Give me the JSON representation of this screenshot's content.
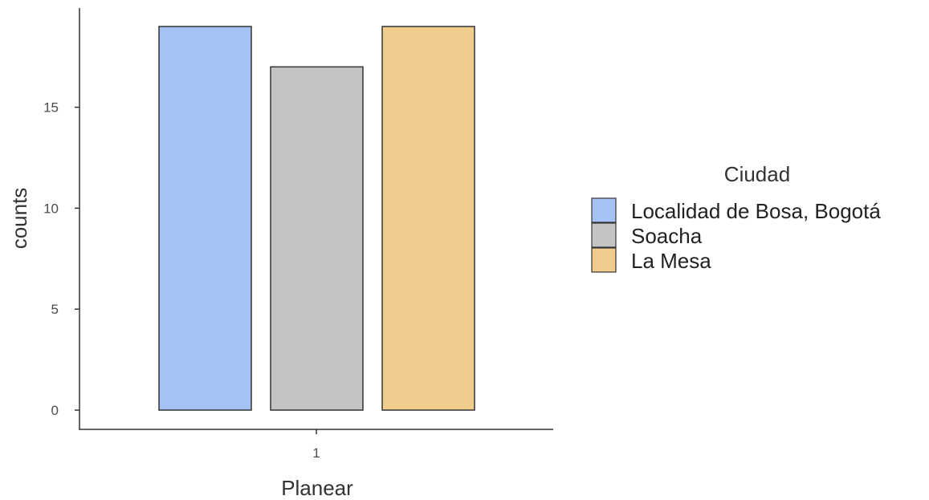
{
  "chart_data": {
    "type": "bar",
    "categories": [
      "1"
    ],
    "series": [
      {
        "name": "Localidad de Bosa, Bogotá",
        "values": [
          19
        ],
        "color": "#a4c2f4"
      },
      {
        "name": "Soacha",
        "values": [
          17
        ],
        "color": "#c4c4c4"
      },
      {
        "name": "La Mesa",
        "values": [
          19
        ],
        "color": "#f0cd8e"
      }
    ],
    "xlabel": "Planear",
    "ylabel": "counts",
    "ylim": [
      0,
      19
    ],
    "yticks": [
      0,
      5,
      10,
      15
    ],
    "grid": false,
    "legend": {
      "title": "Ciudad",
      "position": "right"
    }
  }
}
